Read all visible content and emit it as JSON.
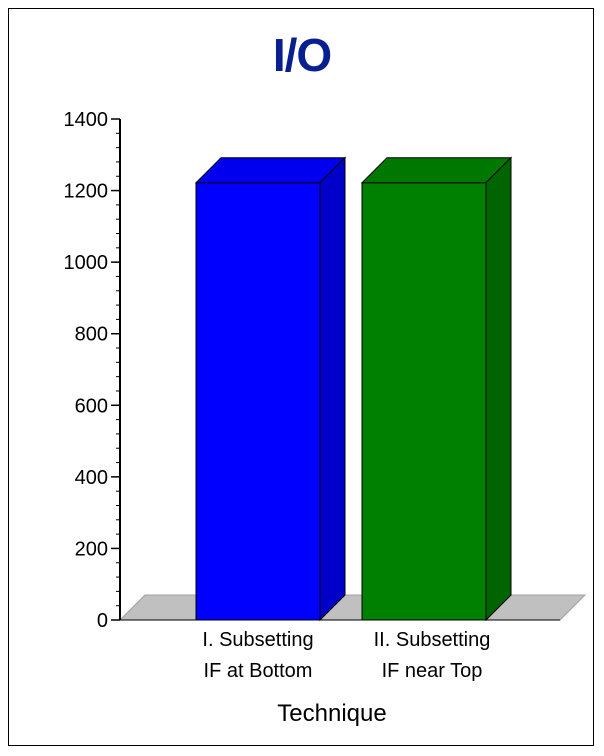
{
  "chart_data": {
    "type": "bar",
    "title": "I/O",
    "xlabel": "Technique",
    "ylabel": "",
    "ylim": [
      0,
      1400
    ],
    "yticks": [
      0,
      200,
      400,
      600,
      800,
      1000,
      1200,
      1400
    ],
    "categories": [
      [
        "I. Subsetting",
        "IF at Bottom"
      ],
      [
        "II.  Subsetting",
        "IF near Top"
      ]
    ],
    "values": [
      1222,
      1222
    ],
    "colors": [
      {
        "front": "#0000ff",
        "top": "#0000ee",
        "side": "#0000c8"
      },
      {
        "front": "#008000",
        "top": "#007800",
        "side": "#006400"
      }
    ],
    "floor_color": "#c0c0c0",
    "grid": false,
    "legend": "none"
  }
}
